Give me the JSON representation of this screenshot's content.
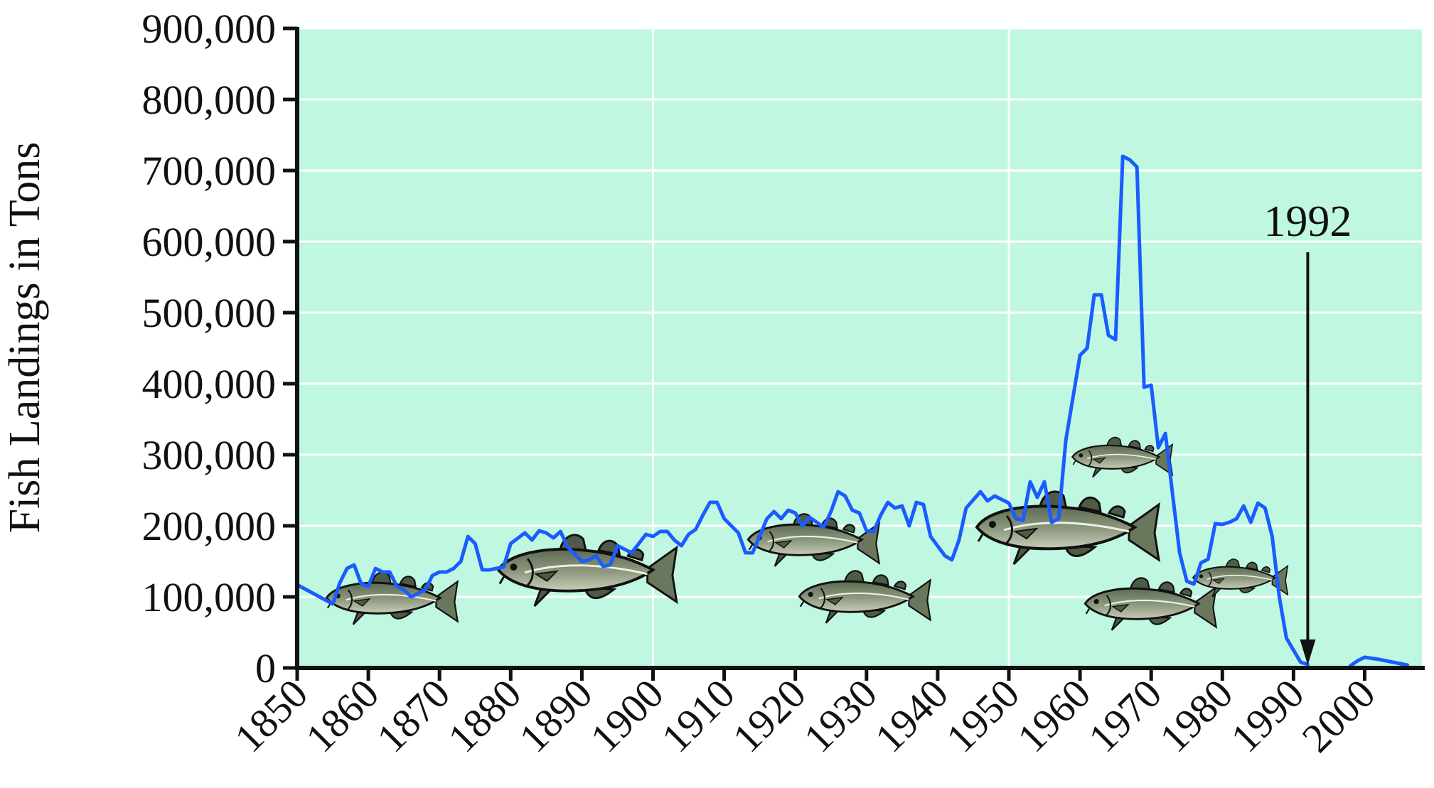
{
  "chart_data": {
    "type": "line",
    "title": "",
    "xlabel": "",
    "ylabel": "Fish Landings in Tons",
    "xlim": [
      1850,
      2006
    ],
    "ylim": [
      0,
      900000
    ],
    "x_ticks": [
      "1850",
      "1860",
      "1870",
      "1880",
      "1890",
      "1900",
      "1910",
      "1920",
      "1930",
      "1940",
      "1950",
      "1960",
      "1970",
      "1980",
      "1990",
      "2000"
    ],
    "y_ticks": [
      "0",
      "100,000",
      "200,000",
      "300,000",
      "400,000",
      "500,000",
      "600,000",
      "700,000",
      "800,000",
      "900,000"
    ],
    "grid": true,
    "colors": {
      "plot_bg": "#bff7e1",
      "grid": "#ffffff",
      "line": "#1a5cff"
    },
    "annotation": {
      "label": "1992",
      "x": 1992,
      "target_y": 0
    },
    "icons": [
      "cod-fish-icon"
    ],
    "series": [
      {
        "points": [
          [
            1850,
            117000
          ],
          [
            1855,
            90000
          ],
          [
            1856,
            120000
          ],
          [
            1857,
            140000
          ],
          [
            1858,
            145000
          ],
          [
            1859,
            118000
          ],
          [
            1860,
            115000
          ],
          [
            1861,
            140000
          ],
          [
            1862,
            135000
          ],
          [
            1863,
            135000
          ],
          [
            1864,
            115000
          ],
          [
            1865,
            110000
          ],
          [
            1866,
            100000
          ],
          [
            1867,
            105000
          ],
          [
            1868,
            110000
          ],
          [
            1869,
            130000
          ],
          [
            1870,
            135000
          ],
          [
            1871,
            135000
          ],
          [
            1872,
            140000
          ],
          [
            1873,
            150000
          ],
          [
            1874,
            185000
          ],
          [
            1875,
            175000
          ],
          [
            1876,
            138000
          ],
          [
            1877,
            138000
          ],
          [
            1878,
            140000
          ],
          [
            1879,
            142000
          ],
          [
            1880,
            175000
          ],
          [
            1882,
            190000
          ],
          [
            1883,
            180000
          ],
          [
            1884,
            193000
          ],
          [
            1885,
            190000
          ],
          [
            1886,
            183000
          ],
          [
            1887,
            192000
          ],
          [
            1888,
            170000
          ],
          [
            1889,
            160000
          ],
          [
            1890,
            150000
          ],
          [
            1891,
            152000
          ],
          [
            1892,
            158000
          ],
          [
            1893,
            143000
          ],
          [
            1894,
            145000
          ],
          [
            1895,
            172000
          ],
          [
            1897,
            162000
          ],
          [
            1898,
            175000
          ],
          [
            1899,
            188000
          ],
          [
            1900,
            185000
          ],
          [
            1901,
            192000
          ],
          [
            1902,
            192000
          ],
          [
            1903,
            180000
          ],
          [
            1904,
            172000
          ],
          [
            1905,
            188000
          ],
          [
            1906,
            195000
          ],
          [
            1907,
            215000
          ],
          [
            1908,
            233000
          ],
          [
            1909,
            233000
          ],
          [
            1910,
            210000
          ],
          [
            1912,
            190000
          ],
          [
            1913,
            162000
          ],
          [
            1914,
            162000
          ],
          [
            1916,
            210000
          ],
          [
            1917,
            220000
          ],
          [
            1918,
            210000
          ],
          [
            1919,
            222000
          ],
          [
            1920,
            218000
          ],
          [
            1921,
            200000
          ],
          [
            1922,
            212000
          ],
          [
            1923,
            205000
          ],
          [
            1924,
            198000
          ],
          [
            1925,
            220000
          ],
          [
            1926,
            248000
          ],
          [
            1927,
            242000
          ],
          [
            1928,
            222000
          ],
          [
            1929,
            218000
          ],
          [
            1930,
            193000
          ],
          [
            1931,
            192000
          ],
          [
            1932,
            215000
          ],
          [
            1933,
            233000
          ],
          [
            1934,
            225000
          ],
          [
            1935,
            228000
          ],
          [
            1936,
            200000
          ],
          [
            1937,
            233000
          ],
          [
            1938,
            230000
          ],
          [
            1939,
            185000
          ],
          [
            1941,
            158000
          ],
          [
            1942,
            152000
          ],
          [
            1943,
            180000
          ],
          [
            1944,
            225000
          ],
          [
            1946,
            248000
          ],
          [
            1947,
            235000
          ],
          [
            1948,
            242000
          ],
          [
            1950,
            232000
          ],
          [
            1951,
            210000
          ],
          [
            1952,
            208000
          ],
          [
            1953,
            262000
          ],
          [
            1954,
            240000
          ],
          [
            1955,
            262000
          ],
          [
            1956,
            205000
          ],
          [
            1957,
            210000
          ],
          [
            1958,
            320000
          ],
          [
            1960,
            440000
          ],
          [
            1961,
            450000
          ],
          [
            1962,
            525000
          ],
          [
            1963,
            525000
          ],
          [
            1964,
            468000
          ],
          [
            1965,
            462000
          ],
          [
            1966,
            720000
          ],
          [
            1967,
            715000
          ],
          [
            1968,
            705000
          ],
          [
            1969,
            395000
          ],
          [
            1970,
            398000
          ],
          [
            1971,
            310000
          ],
          [
            1972,
            330000
          ],
          [
            1973,
            245000
          ],
          [
            1974,
            162000
          ],
          [
            1975,
            122000
          ],
          [
            1976,
            118000
          ],
          [
            1977,
            148000
          ],
          [
            1978,
            153000
          ],
          [
            1979,
            203000
          ],
          [
            1980,
            202000
          ],
          [
            1981,
            205000
          ],
          [
            1982,
            210000
          ],
          [
            1983,
            228000
          ],
          [
            1984,
            205000
          ],
          [
            1985,
            232000
          ],
          [
            1986,
            225000
          ],
          [
            1987,
            185000
          ],
          [
            1988,
            100000
          ],
          [
            1989,
            42000
          ],
          [
            1990,
            25000
          ],
          [
            1991,
            8000
          ],
          [
            1992,
            5000
          ],
          null,
          [
            1998,
            3000
          ],
          [
            1999,
            10000
          ],
          [
            2000,
            15000
          ],
          [
            2002,
            12000
          ],
          [
            2004,
            8000
          ],
          [
            2006,
            4000
          ]
        ]
      }
    ]
  }
}
